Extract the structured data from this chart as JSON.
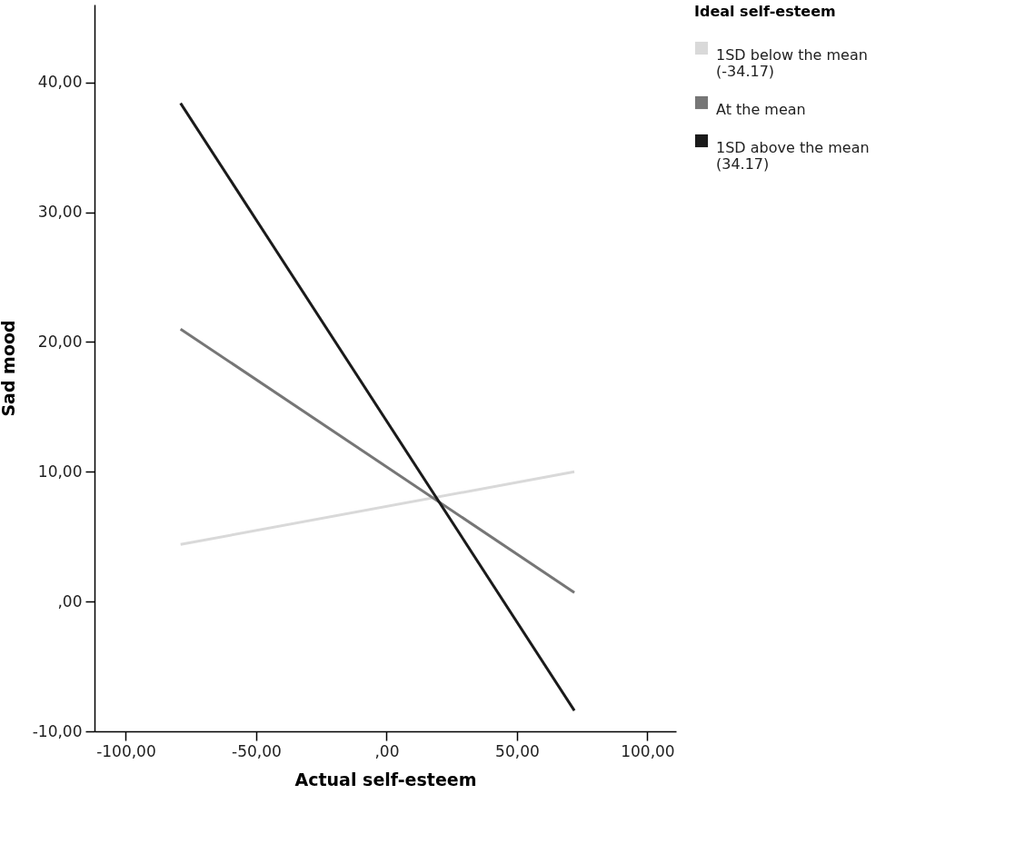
{
  "chart_data": {
    "type": "line",
    "xlabel": "Actual self-esteem",
    "ylabel": "Sad mood",
    "legend_title": "Ideal self-esteem",
    "x": [
      -79,
      72
    ],
    "series": [
      {
        "name": "1SD below the mean (-34.17)",
        "color": "#d9d9d9",
        "values": [
          4.4,
          10.0
        ]
      },
      {
        "name": "At the mean",
        "color": "#767676",
        "values": [
          21.0,
          0.7
        ]
      },
      {
        "name": "1SD above the mean (34.17)",
        "color": "#1a1a1a",
        "values": [
          38.4,
          -8.4
        ]
      }
    ],
    "xlim": [
      -112,
      111
    ],
    "xticks": [
      {
        "value": -100,
        "label": "-100,00"
      },
      {
        "value": -50,
        "label": "-50,00"
      },
      {
        "value": 0,
        "label": ",00"
      },
      {
        "value": 50,
        "label": "50,00"
      },
      {
        "value": 100,
        "label": "100,00"
      }
    ],
    "ylim": [
      -10,
      46
    ],
    "yticks": [
      {
        "value": -10,
        "label": "-10,00"
      },
      {
        "value": 0,
        "label": ",00"
      },
      {
        "value": 10,
        "label": "10,00"
      },
      {
        "value": 20,
        "label": "20,00"
      },
      {
        "value": 30,
        "label": "30,00"
      },
      {
        "value": 40,
        "label": "40,00"
      }
    ],
    "grid": false,
    "legend": "top right",
    "marker": "none",
    "line_style": "solid"
  }
}
